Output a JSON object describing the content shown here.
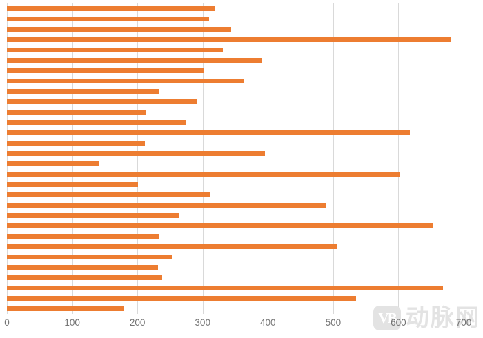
{
  "chart_data": {
    "type": "bar",
    "orientation": "horizontal",
    "title": "",
    "xlabel": "",
    "ylabel": "",
    "xlim": [
      0,
      700
    ],
    "x_ticks": [
      0,
      100,
      200,
      300,
      400,
      500,
      600,
      700
    ],
    "grid": true,
    "legend": false,
    "categories_visible": false,
    "values": [
      318,
      310,
      344,
      680,
      331,
      391,
      302,
      363,
      234,
      292,
      213,
      275,
      617,
      211,
      395,
      142,
      603,
      201,
      311,
      489,
      264,
      653,
      233,
      506,
      254,
      231,
      238,
      668,
      535,
      179
    ],
    "bar_color": "#ED7D31",
    "gridline_color": "#D9D9D9",
    "tick_label_color": "#757575",
    "background_color": "#FFFFFF"
  },
  "watermark": {
    "logo_text": "VB",
    "brand_text": "动脉网",
    "color": "#E3E3E3"
  }
}
